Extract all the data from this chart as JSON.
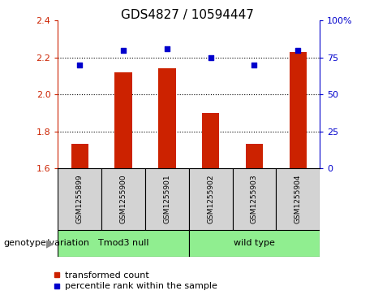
{
  "title": "GDS4827 / 10594447",
  "samples": [
    "GSM1255899",
    "GSM1255900",
    "GSM1255901",
    "GSM1255902",
    "GSM1255903",
    "GSM1255904"
  ],
  "red_values": [
    1.73,
    2.12,
    2.14,
    1.9,
    1.73,
    2.23
  ],
  "blue_values": [
    70,
    80,
    81,
    75,
    70,
    80
  ],
  "ylim_left": [
    1.6,
    2.4
  ],
  "ylim_right": [
    0,
    100
  ],
  "yticks_left": [
    1.6,
    1.8,
    2.0,
    2.2,
    2.4
  ],
  "yticks_right": [
    0,
    25,
    50,
    75,
    100
  ],
  "dotted_lines": [
    1.8,
    2.0,
    2.2
  ],
  "group1_label": "Tmod3 null",
  "group2_label": "wild type",
  "group1_indices": [
    0,
    1,
    2
  ],
  "group2_indices": [
    3,
    4,
    5
  ],
  "genotype_label": "genotype/variation",
  "legend_red": "transformed count",
  "legend_blue": "percentile rank within the sample",
  "bar_color": "#cc2200",
  "dot_color": "#0000cc",
  "group_color": "#90ee90",
  "sample_box_color": "#d3d3d3",
  "title_fontsize": 11,
  "tick_fontsize": 8,
  "label_fontsize": 8,
  "legend_fontsize": 8
}
